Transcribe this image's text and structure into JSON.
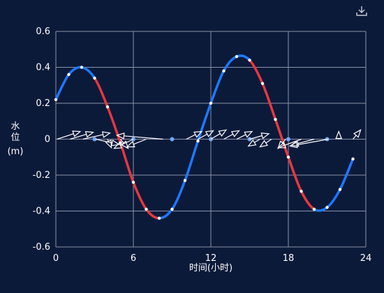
{
  "toolbar": {
    "download_icon": "download-icon"
  },
  "chart_data": {
    "type": "line",
    "title": "",
    "xlabel": "时间(小时)",
    "ylabel_lines": [
      "水",
      "位",
      "(m)"
    ],
    "xlim": [
      0,
      24
    ],
    "ylim": [
      -0.6,
      0.6
    ],
    "x_ticks": [
      0,
      6,
      12,
      18,
      24
    ],
    "y_ticks": [
      -0.6,
      -0.4,
      -0.2,
      0,
      0.2,
      0.4,
      0.6
    ],
    "y_tick_labels": [
      "-0.6",
      "-0.4",
      "-0.2",
      "0",
      "0.2",
      "0.4",
      "0.6"
    ],
    "grid": true,
    "colors": {
      "rising": "#1f78ff",
      "falling": "#e8373f",
      "background": "#0c1a3a",
      "grid": "#8a93a8",
      "arrow": "#ffffff"
    },
    "water_level": {
      "x": [
        0,
        1,
        2,
        3,
        4,
        5,
        6,
        7,
        8,
        9,
        10,
        11,
        12,
        13,
        14,
        15,
        16,
        17,
        18,
        19,
        20,
        21,
        22,
        23
      ],
      "y": [
        0.22,
        0.36,
        0.4,
        0.34,
        0.18,
        -0.02,
        -0.24,
        -0.39,
        -0.44,
        -0.39,
        -0.23,
        -0.01,
        0.2,
        0.38,
        0.46,
        0.44,
        0.31,
        0.11,
        -0.1,
        -0.29,
        -0.39,
        -0.38,
        -0.28,
        -0.11
      ]
    },
    "zero_markers": [
      3,
      6,
      9,
      12,
      15,
      18,
      21
    ],
    "flow_arrows": [
      {
        "x": 0.1,
        "dx": 0.3,
        "dy": 0.1
      },
      {
        "x": 1.1,
        "dx": 0.3,
        "dy": 0.09
      },
      {
        "x": 2.1,
        "dx": 0.35,
        "dy": 0.08
      },
      {
        "x": 3.1,
        "dx": 0.3,
        "dy": -0.07
      },
      {
        "x": 4.0,
        "dx": 0.05,
        "dy": -0.11
      },
      {
        "x": 5.0,
        "dx": 0.1,
        "dy": -0.12
      },
      {
        "x": 6.0,
        "dx": -0.25,
        "dy": -0.12
      },
      {
        "x": 7.0,
        "dx": -0.25,
        "dy": -0.1
      },
      {
        "x": 8.3,
        "dx": -0.6,
        "dy": 0.05
      },
      {
        "x": 10.1,
        "dx": 0.2,
        "dy": 0.1
      },
      {
        "x": 11.0,
        "dx": 0.2,
        "dy": 0.11
      },
      {
        "x": 12.0,
        "dx": 0.2,
        "dy": 0.12
      },
      {
        "x": 13.0,
        "dx": 0.2,
        "dy": 0.11
      },
      {
        "x": 14.0,
        "dx": 0.2,
        "dy": 0.1
      },
      {
        "x": 15.0,
        "dx": 0.25,
        "dy": 0.07
      },
      {
        "x": 15.8,
        "dx": -0.15,
        "dy": -0.09
      },
      {
        "x": 16.7,
        "dx": -0.15,
        "dy": -0.1
      },
      {
        "x": 17.8,
        "dx": -0.1,
        "dy": -0.12
      },
      {
        "x": 19.0,
        "dx": -0.3,
        "dy": -0.11
      },
      {
        "x": 20.0,
        "dx": -0.3,
        "dy": -0.08
      },
      {
        "x": 21.1,
        "dx": -0.5,
        "dy": -0.09
      },
      {
        "x": 21.9,
        "dx": 0.0,
        "dy": 0.1
      },
      {
        "x": 23.0,
        "dx": 0.1,
        "dy": 0.12
      }
    ]
  }
}
